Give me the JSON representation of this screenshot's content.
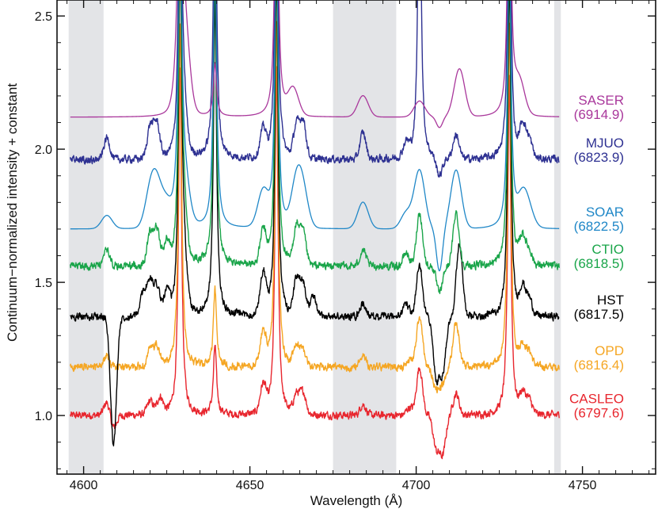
{
  "chart_data": {
    "type": "line",
    "title": "",
    "xlabel": "Wavelength (Å)",
    "ylabel": "Continuum−normalized intensity + constant",
    "xlim": [
      4592,
      4772
    ],
    "ylim": [
      0.78,
      2.56
    ],
    "xticks": [
      4600,
      4650,
      4700,
      4750
    ],
    "yticks": [
      1.0,
      1.5,
      2.0,
      2.5
    ],
    "xtick_labels": [
      "4600",
      "4650",
      "4700",
      "4750"
    ],
    "ytick_labels": [
      "1.0",
      "1.5",
      "2.0",
      "2.5"
    ],
    "shaded_bands": [
      [
        4595.5,
        4606
      ],
      [
        4675,
        4694
      ],
      [
        4741.5,
        4743.5
      ]
    ],
    "series": [
      {
        "name": "CASLEO",
        "date": "(6797.6)",
        "color": "#e8262e",
        "baseline": 1.0,
        "smooth": false,
        "lines": [
          [
            4629,
            1.3
          ],
          [
            4639.5,
            0.26
          ],
          [
            4658,
            1.3
          ],
          [
            4728,
            1.28
          ]
        ],
        "features": [
          [
            4607,
            0.05
          ],
          [
            4620,
            0.05
          ],
          [
            4623,
            0.06
          ],
          [
            4654,
            0.1
          ],
          [
            4664,
            0.07
          ],
          [
            4666,
            0.08
          ],
          [
            4684,
            0.04
          ],
          [
            4698,
            0.03
          ],
          [
            4701,
            0.18
          ],
          [
            4712,
            0.08
          ],
          [
            4732,
            0.07
          ],
          [
            4734,
            0.05
          ]
        ],
        "dips": [
          [
            4609,
            0.05
          ],
          [
            4706,
            0.12
          ],
          [
            4708,
            0.14
          ]
        ]
      },
      {
        "name": "OPD",
        "date": "(6816.4)",
        "color": "#f5a623",
        "baseline": 1.18,
        "smooth": false,
        "lines": [
          [
            4629,
            1.3
          ],
          [
            4639.5,
            0.29
          ],
          [
            4658,
            1.3
          ],
          [
            4728,
            1.28
          ]
        ],
        "features": [
          [
            4607,
            0.04
          ],
          [
            4620,
            0.06
          ],
          [
            4622,
            0.07
          ],
          [
            4654,
            0.12
          ],
          [
            4664,
            0.07
          ],
          [
            4666,
            0.06
          ],
          [
            4684,
            0.05
          ],
          [
            4698,
            0.03
          ],
          [
            4701,
            0.19
          ],
          [
            4712,
            0.17
          ],
          [
            4732,
            0.07
          ],
          [
            4734,
            0.05
          ]
        ],
        "dips": [
          [
            4706,
            0.08
          ],
          [
            4708,
            0.06
          ]
        ]
      },
      {
        "name": "HST",
        "date": "(6817.5)",
        "color": "#000000",
        "baseline": 1.37,
        "smooth": false,
        "lines": [
          [
            4629,
            1.3
          ],
          [
            4639.5,
            1.2
          ],
          [
            4658,
            1.3
          ],
          [
            4728,
            1.28
          ]
        ],
        "features": [
          [
            4618,
            0.09
          ],
          [
            4620,
            0.12
          ],
          [
            4622,
            0.11
          ],
          [
            4625,
            0.08
          ],
          [
            4630,
            0.2
          ],
          [
            4654,
            0.15
          ],
          [
            4664,
            0.13
          ],
          [
            4666,
            0.12
          ],
          [
            4669,
            0.07
          ],
          [
            4684,
            0.05
          ],
          [
            4697,
            0.05
          ],
          [
            4701,
            0.2
          ],
          [
            4713,
            0.28
          ],
          [
            4732,
            0.1
          ],
          [
            4734,
            0.06
          ]
        ],
        "dips": [
          [
            4609,
            0.48
          ],
          [
            4706,
            0.22
          ],
          [
            4708,
            0.2
          ]
        ]
      },
      {
        "name": "CTIO",
        "date": "(6818.5)",
        "color": "#1aa54a",
        "baseline": 1.56,
        "smooth": false,
        "lines": [
          [
            4629,
            1.3
          ],
          [
            4639.5,
            1.2
          ],
          [
            4658,
            1.3
          ],
          [
            4728,
            1.28
          ]
        ],
        "features": [
          [
            4607,
            0.06
          ],
          [
            4620,
            0.12
          ],
          [
            4622,
            0.13
          ],
          [
            4625,
            0.08
          ],
          [
            4630,
            0.18
          ],
          [
            4654,
            0.12
          ],
          [
            4664,
            0.14
          ],
          [
            4666,
            0.12
          ],
          [
            4684,
            0.06
          ],
          [
            4697,
            0.05
          ],
          [
            4701,
            0.2
          ],
          [
            4712,
            0.2
          ],
          [
            4732,
            0.1
          ],
          [
            4734,
            0.05
          ]
        ],
        "dips": [
          [
            4707,
            0.1
          ]
        ]
      },
      {
        "name": "SOAR",
        "date": "(6822.5)",
        "color": "#1f87c7",
        "baseline": 1.7,
        "smooth": true,
        "lines": [
          [
            4629,
            1.3
          ],
          [
            4639.5,
            1.2
          ],
          [
            4658,
            1.3
          ],
          [
            4728,
            1.28
          ]
        ],
        "features": [
          [
            4607,
            0.05
          ],
          [
            4620,
            0.12
          ],
          [
            4622,
            0.14
          ],
          [
            4625,
            0.08
          ],
          [
            4630,
            0.18
          ],
          [
            4654,
            0.13
          ],
          [
            4664,
            0.16
          ],
          [
            4666,
            0.12
          ],
          [
            4684,
            0.1
          ],
          [
            4697,
            0.06
          ],
          [
            4701,
            0.22
          ],
          [
            4712,
            0.22
          ],
          [
            4732,
            0.11
          ],
          [
            4734,
            0.05
          ]
        ],
        "dips": [
          [
            4707,
            0.16
          ]
        ]
      },
      {
        "name": "MJUO",
        "date": "(6823.9)",
        "color": "#2e3192",
        "baseline": 1.96,
        "smooth": false,
        "lines": [
          [
            4629,
            1.3
          ],
          [
            4639.5,
            1.2
          ],
          [
            4658,
            1.3
          ],
          [
            4701,
            1.3
          ],
          [
            4728,
            1.28
          ]
        ],
        "features": [
          [
            4607,
            0.08
          ],
          [
            4620,
            0.12
          ],
          [
            4622,
            0.13
          ],
          [
            4630,
            0.16
          ],
          [
            4654,
            0.1
          ],
          [
            4664,
            0.12
          ],
          [
            4666,
            0.14
          ],
          [
            4684,
            0.1
          ],
          [
            4697,
            0.05
          ],
          [
            4712,
            0.09
          ],
          [
            4732,
            0.12
          ],
          [
            4734,
            0.07
          ]
        ],
        "dips": [
          [
            4707,
            0.07
          ]
        ]
      },
      {
        "name": "SASER",
        "date": "(6914.9)",
        "color": "#a9379b",
        "baseline": 2.12,
        "smooth": true,
        "lines": [
          [
            4629,
            1.3
          ],
          [
            4639.5,
            0.2
          ],
          [
            4658,
            1.3
          ],
          [
            4728,
            1.28
          ]
        ],
        "features": [
          [
            4630,
            0.35
          ],
          [
            4663,
            0.1
          ],
          [
            4684,
            0.08
          ],
          [
            4701,
            0.06
          ],
          [
            4713,
            0.18
          ],
          [
            4731,
            0.12
          ]
        ],
        "dips": [
          [
            4707,
            0.04
          ]
        ]
      }
    ]
  }
}
